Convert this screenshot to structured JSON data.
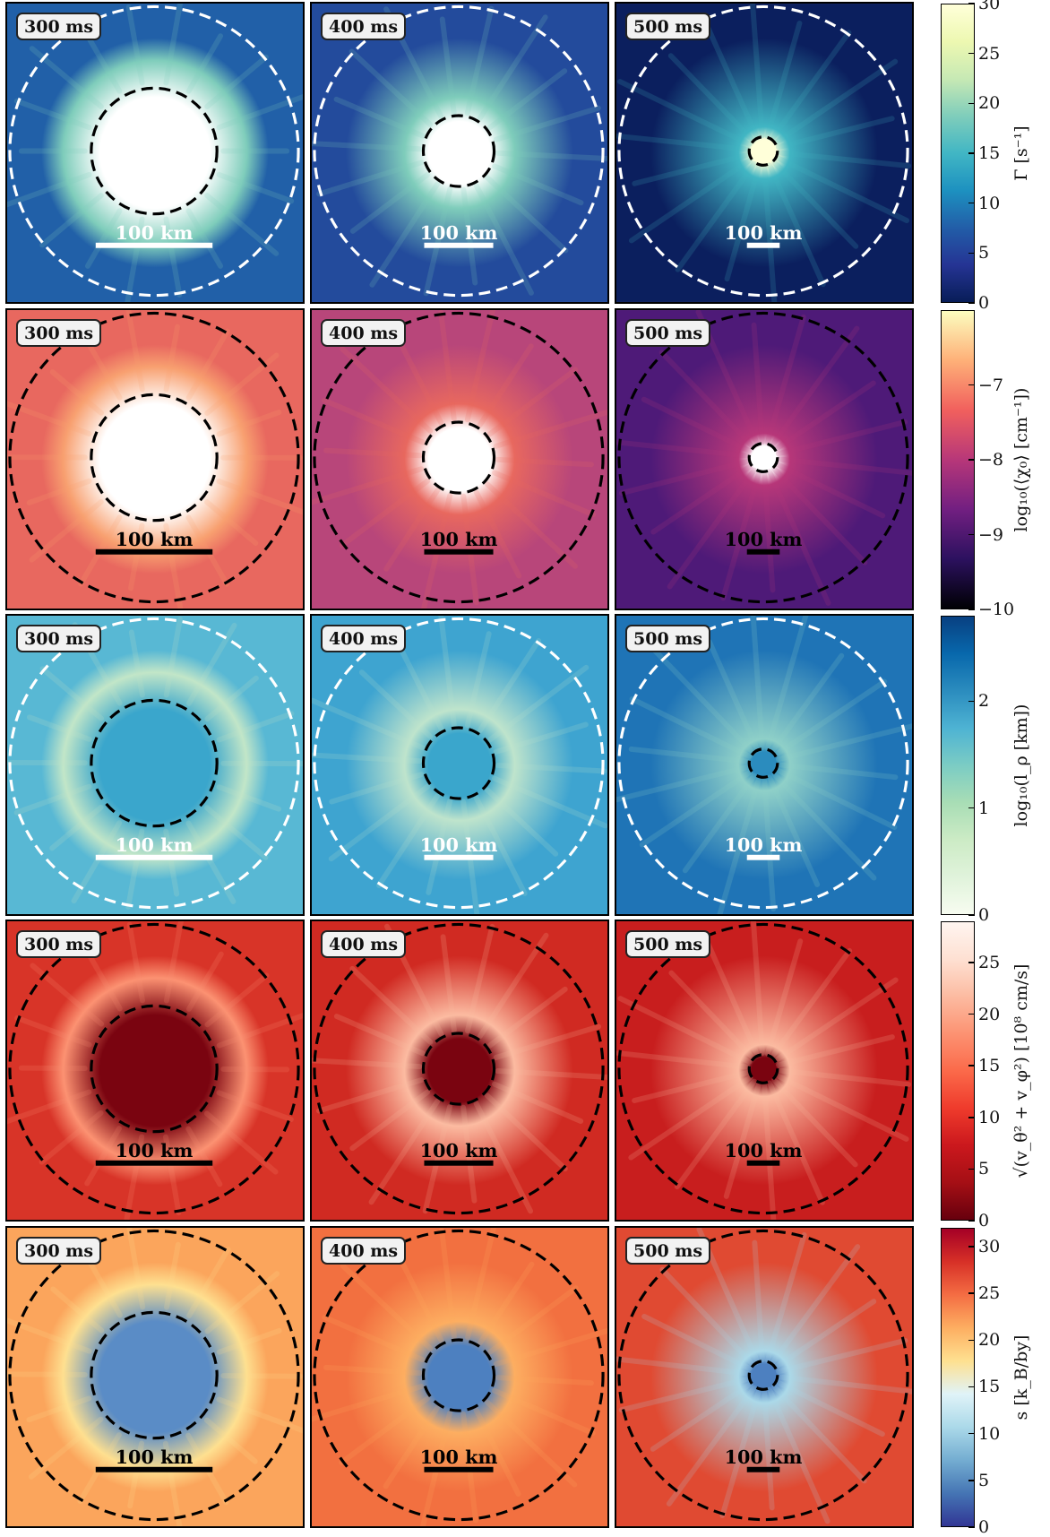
{
  "columns": [
    {
      "time": "300 ms"
    },
    {
      "time": "400 ms"
    },
    {
      "time": "500 ms"
    }
  ],
  "scale_bar_label": "100 km",
  "rows": [
    {
      "quantity": "neutrino heating rate",
      "colorbar_label": "Γ [s⁻¹]",
      "ticks": [
        "0",
        "5",
        "10",
        "15",
        "20",
        "25",
        "30"
      ],
      "vmin": 0,
      "vmax": 30,
      "colormap": [
        "#081d58",
        "#253494",
        "#225ea8",
        "#1d91c0",
        "#41b6c4",
        "#7fcdbb",
        "#c7e9b4",
        "#edf8b1",
        "#ffffd9"
      ],
      "scale_bar_color": "#ffffff",
      "outer_circle_color": "#ffffff",
      "panels": [
        {
          "bg": "#2160a8",
          "glow": "#7fcdbb",
          "core": "#ffffff"
        },
        {
          "bg": "#234b9c",
          "glow": "#7fcdbb",
          "core": "#ffffff"
        },
        {
          "bg": "#0b1f5e",
          "glow": "#41b6c4",
          "core": "#ffffd9"
        }
      ]
    },
    {
      "quantity": "opacity",
      "colorbar_label": "log₁₀(⟨χ₀⟩ [cm⁻¹])",
      "ticks": [
        "−10",
        "−9",
        "−8",
        "−7"
      ],
      "vmin": -10,
      "vmax": -6,
      "colormap": [
        "#000004",
        "#2c115f",
        "#721f81",
        "#b73779",
        "#f1605d",
        "#feb078",
        "#fcfdbf"
      ],
      "scale_bar_color": "#000000",
      "outer_circle_color": "#000000",
      "panels": [
        {
          "bg": "#e8685f",
          "glow": "#f8a070",
          "core": "#ffffff"
        },
        {
          "bg": "#b8467a",
          "glow": "#e8685f",
          "core": "#ffffff"
        },
        {
          "bg": "#4e1a78",
          "glow": "#b73779",
          "core": "#ffffff"
        }
      ]
    },
    {
      "quantity": "density scale height",
      "colorbar_label": "log₁₀(l_ρ [km])",
      "ticks": [
        "0",
        "1",
        "2"
      ],
      "vmin": 0,
      "vmax": 2.8,
      "colormap": [
        "#f7fcf0",
        "#e0f3db",
        "#ccebc5",
        "#a8ddb5",
        "#7bccc4",
        "#4eb3d3",
        "#2b8cbe",
        "#0868ac",
        "#084081"
      ],
      "scale_bar_color": "#ffffff",
      "outer_circle_color": "#ffffff",
      "panels": [
        {
          "bg": "#58b8d4",
          "glow": "#c2e6c8",
          "core": "#3aa6cc"
        },
        {
          "bg": "#3ea4d0",
          "glow": "#bfe4cc",
          "core": "#3aa6cc"
        },
        {
          "bg": "#1f74b6",
          "glow": "#8fd0c8",
          "core": "#2b8cbe"
        }
      ]
    },
    {
      "quantity": "lateral velocity",
      "colorbar_label": "√(v_θ² + v_φ²) [10⁸ cm/s]",
      "ticks": [
        "0",
        "5",
        "10",
        "15",
        "20",
        "25"
      ],
      "vmin": 0,
      "vmax": 29,
      "colormap": [
        "#67000d",
        "#a50f15",
        "#cb181d",
        "#ef3b2c",
        "#fb6a4a",
        "#fc9272",
        "#fcbba1",
        "#fee0d2",
        "#fff5f0"
      ],
      "scale_bar_color": "#000000",
      "outer_circle_color": "#000000",
      "panels": [
        {
          "bg": "#d83428",
          "glow": "#fc9272",
          "core": "#7a0410"
        },
        {
          "bg": "#d02a22",
          "glow": "#fcbba1",
          "core": "#7a0410"
        },
        {
          "bg": "#c81e1e",
          "glow": "#fcbba1",
          "core": "#7a0410"
        }
      ]
    },
    {
      "quantity": "entropy",
      "colorbar_label": "s [k_B/by]",
      "ticks": [
        "0",
        "5",
        "10",
        "15",
        "20",
        "25",
        "30"
      ],
      "vmin": 0,
      "vmax": 32,
      "colormap": [
        "#313695",
        "#4575b4",
        "#74add1",
        "#abd9e9",
        "#e0f3f8",
        "#fee090",
        "#fdae61",
        "#f46d43",
        "#d73027",
        "#a50026"
      ],
      "scale_bar_color": "#000000",
      "outer_circle_color": "#000000",
      "panels": [
        {
          "bg": "#fba55c",
          "glow": "#fee090",
          "core": "#5a8cc6"
        },
        {
          "bg": "#f27040",
          "glow": "#fdae61",
          "core": "#4d80c0"
        },
        {
          "bg": "#e04a32",
          "glow": "#abd9e9",
          "core": "#4d80c0"
        }
      ]
    }
  ]
}
